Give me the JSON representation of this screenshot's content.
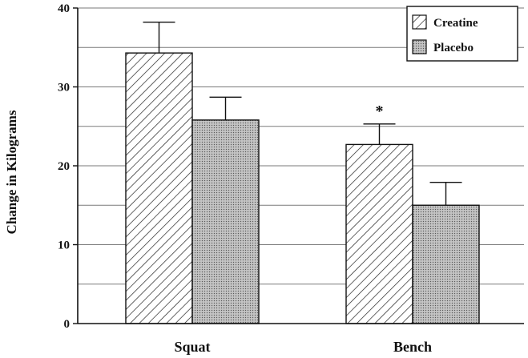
{
  "chart_data": {
    "type": "bar",
    "categories": [
      "Squat",
      "Bench"
    ],
    "series": [
      {
        "name": "Creatine",
        "values": [
          34.3,
          22.7
        ],
        "error_upper": [
          38.2,
          25.3
        ],
        "pattern": "diagonal-hatch"
      },
      {
        "name": "Placebo",
        "values": [
          25.8,
          15.0
        ],
        "error_upper": [
          28.7,
          17.9
        ],
        "pattern": "stipple-gray"
      }
    ],
    "ylabel": "Change in Kilograms",
    "ylim": [
      0,
      40
    ],
    "yticks": [
      0,
      10,
      20,
      30,
      40
    ],
    "grid": "horizontal",
    "legend_position": "top-right",
    "annotations": [
      {
        "text": "*",
        "category": "Bench",
        "series": "Creatine"
      }
    ]
  }
}
